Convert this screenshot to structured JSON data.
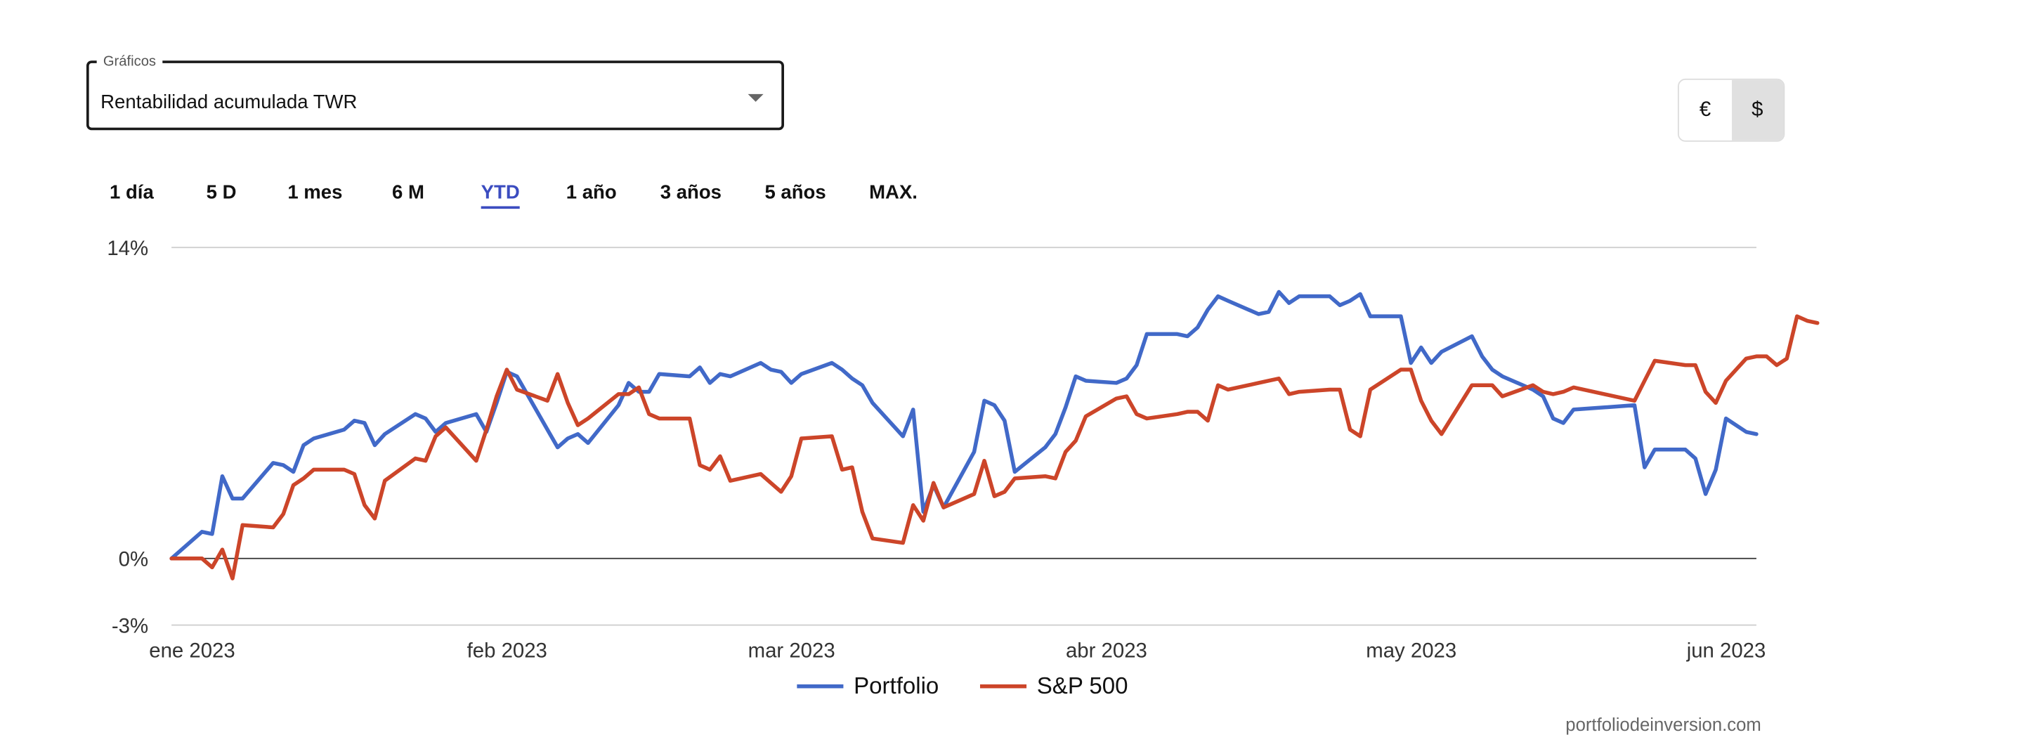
{
  "selector": {
    "legend": "Gráficos",
    "value": "Rentabilidad acumulada TWR"
  },
  "currency": {
    "options": [
      "€",
      "$"
    ],
    "selected": "$"
  },
  "ranges": {
    "tabs": [
      "1 día",
      "5 D",
      "1 mes",
      "6 M",
      "YTD",
      "1 año",
      "3 años",
      "5 años",
      "MAX."
    ],
    "selected": "YTD"
  },
  "watermark": "portfoliodeinversion.com",
  "chart_data": {
    "type": "line",
    "ylim": [
      -3,
      14
    ],
    "yticks": [
      {
        "label": "14%",
        "value": 14,
        "line": "grid"
      },
      {
        "label": "0%",
        "value": 0,
        "line": "zero"
      },
      {
        "label": "-3%",
        "value": -3,
        "line": "grid"
      }
    ],
    "xlim": [
      "2023-01-01",
      "2023-06-06"
    ],
    "xticks": [
      {
        "label": "ene 2023",
        "date": "2023-01-01"
      },
      {
        "label": "feb 2023",
        "date": "2023-02-01"
      },
      {
        "label": "mar 2023",
        "date": "2023-03-01"
      },
      {
        "label": "abr 2023",
        "date": "2023-04-01"
      },
      {
        "label": "may 2023",
        "date": "2023-05-01"
      },
      {
        "label": "jun 2023",
        "date": "2023-06-01"
      }
    ],
    "grid": true,
    "legend": "bottom-center",
    "series": [
      {
        "name": "Portfolio",
        "color": "#4169c8",
        "points": [
          [
            "2023-01-01",
            0.0
          ],
          [
            "2023-01-04",
            1.2
          ],
          [
            "2023-01-05",
            1.1
          ],
          [
            "2023-01-06",
            3.7
          ],
          [
            "2023-01-07",
            2.7
          ],
          [
            "2023-01-08",
            2.7
          ],
          [
            "2023-01-11",
            4.3
          ],
          [
            "2023-01-12",
            4.2
          ],
          [
            "2023-01-13",
            3.9
          ],
          [
            "2023-01-14",
            5.1
          ],
          [
            "2023-01-15",
            5.4
          ],
          [
            "2023-01-18",
            5.8
          ],
          [
            "2023-01-19",
            6.2
          ],
          [
            "2023-01-20",
            6.1
          ],
          [
            "2023-01-21",
            5.1
          ],
          [
            "2023-01-22",
            5.6
          ],
          [
            "2023-01-25",
            6.5
          ],
          [
            "2023-01-26",
            6.3
          ],
          [
            "2023-01-27",
            5.7
          ],
          [
            "2023-01-28",
            6.1
          ],
          [
            "2023-01-31",
            6.5
          ],
          [
            "2023-02-01",
            5.7
          ],
          [
            "2023-02-02",
            7.0
          ],
          [
            "2023-02-03",
            8.4
          ],
          [
            "2023-02-04",
            8.2
          ],
          [
            "2023-02-07",
            5.8
          ],
          [
            "2023-02-08",
            5.0
          ],
          [
            "2023-02-09",
            5.4
          ],
          [
            "2023-02-10",
            5.6
          ],
          [
            "2023-02-11",
            5.2
          ],
          [
            "2023-02-14",
            6.9
          ],
          [
            "2023-02-15",
            7.9
          ],
          [
            "2023-02-16",
            7.5
          ],
          [
            "2023-02-17",
            7.5
          ],
          [
            "2023-02-18",
            8.3
          ],
          [
            "2023-02-21",
            8.2
          ],
          [
            "2023-02-22",
            8.6
          ],
          [
            "2023-02-23",
            7.9
          ],
          [
            "2023-02-24",
            8.3
          ],
          [
            "2023-02-25",
            8.2
          ],
          [
            "2023-02-28",
            8.8
          ],
          [
            "2023-03-01",
            8.5
          ],
          [
            "2023-03-02",
            8.4
          ],
          [
            "2023-03-03",
            7.9
          ],
          [
            "2023-03-04",
            8.3
          ],
          [
            "2023-03-07",
            8.8
          ],
          [
            "2023-03-08",
            8.5
          ],
          [
            "2023-03-09",
            8.1
          ],
          [
            "2023-03-10",
            7.8
          ],
          [
            "2023-03-11",
            7.0
          ],
          [
            "2023-03-14",
            5.5
          ],
          [
            "2023-03-15",
            6.7
          ],
          [
            "2023-03-16",
            2.1
          ],
          [
            "2023-03-17",
            3.3
          ],
          [
            "2023-03-18",
            2.3
          ],
          [
            "2023-03-21",
            4.8
          ],
          [
            "2023-03-22",
            7.1
          ],
          [
            "2023-03-23",
            6.9
          ],
          [
            "2023-03-24",
            6.2
          ],
          [
            "2023-03-25",
            3.9
          ],
          [
            "2023-03-28",
            5.0
          ],
          [
            "2023-03-29",
            5.6
          ],
          [
            "2023-03-30",
            6.8
          ],
          [
            "2023-03-31",
            8.2
          ],
          [
            "2023-04-01",
            8.0
          ],
          [
            "2023-04-04",
            7.9
          ],
          [
            "2023-04-05",
            8.1
          ],
          [
            "2023-04-06",
            8.7
          ],
          [
            "2023-04-07",
            10.1
          ],
          [
            "2023-04-10",
            10.1
          ],
          [
            "2023-04-11",
            10.0
          ],
          [
            "2023-04-12",
            10.4
          ],
          [
            "2023-04-13",
            11.2
          ],
          [
            "2023-04-14",
            11.8
          ],
          [
            "2023-04-15",
            11.6
          ],
          [
            "2023-04-18",
            11.0
          ],
          [
            "2023-04-19",
            11.1
          ],
          [
            "2023-04-20",
            12.0
          ],
          [
            "2023-04-21",
            11.5
          ],
          [
            "2023-04-22",
            11.8
          ],
          [
            "2023-04-25",
            11.8
          ],
          [
            "2023-04-26",
            11.4
          ],
          [
            "2023-04-27",
            11.6
          ],
          [
            "2023-04-28",
            11.9
          ],
          [
            "2023-04-29",
            10.9
          ],
          [
            "2023-05-02",
            10.9
          ],
          [
            "2023-05-03",
            8.8
          ],
          [
            "2023-05-04",
            9.5
          ],
          [
            "2023-05-05",
            8.8
          ],
          [
            "2023-05-06",
            9.3
          ],
          [
            "2023-05-09",
            10.0
          ],
          [
            "2023-05-10",
            9.1
          ],
          [
            "2023-05-11",
            8.5
          ],
          [
            "2023-05-12",
            8.2
          ],
          [
            "2023-05-15",
            7.6
          ],
          [
            "2023-05-16",
            7.3
          ],
          [
            "2023-05-17",
            6.3
          ],
          [
            "2023-05-18",
            6.1
          ],
          [
            "2023-05-19",
            6.7
          ],
          [
            "2023-05-25",
            6.9
          ],
          [
            "2023-05-26",
            4.1
          ],
          [
            "2023-05-27",
            4.9
          ],
          [
            "2023-05-30",
            4.9
          ],
          [
            "2023-05-31",
            4.5
          ],
          [
            "2023-06-01",
            2.9
          ],
          [
            "2023-06-02",
            4.0
          ],
          [
            "2023-06-03",
            6.3
          ],
          [
            "2023-06-05",
            5.7
          ],
          [
            "2023-06-06",
            5.6
          ]
        ]
      },
      {
        "name": "S&P 500",
        "color": "#cc4529",
        "points": [
          [
            "2023-01-01",
            0.0
          ],
          [
            "2023-01-04",
            0.0
          ],
          [
            "2023-01-05",
            -0.4
          ],
          [
            "2023-01-06",
            0.4
          ],
          [
            "2023-01-07",
            -0.9
          ],
          [
            "2023-01-08",
            1.5
          ],
          [
            "2023-01-11",
            1.4
          ],
          [
            "2023-01-12",
            2.0
          ],
          [
            "2023-01-13",
            3.3
          ],
          [
            "2023-01-14",
            3.6
          ],
          [
            "2023-01-15",
            4.0
          ],
          [
            "2023-01-18",
            4.0
          ],
          [
            "2023-01-19",
            3.8
          ],
          [
            "2023-01-20",
            2.4
          ],
          [
            "2023-01-21",
            1.8
          ],
          [
            "2023-01-22",
            3.5
          ],
          [
            "2023-01-25",
            4.5
          ],
          [
            "2023-01-26",
            4.4
          ],
          [
            "2023-01-27",
            5.5
          ],
          [
            "2023-01-28",
            5.9
          ],
          [
            "2023-01-31",
            4.4
          ],
          [
            "2023-02-01",
            5.8
          ],
          [
            "2023-02-02",
            7.3
          ],
          [
            "2023-02-03",
            8.5
          ],
          [
            "2023-02-04",
            7.6
          ],
          [
            "2023-02-07",
            7.1
          ],
          [
            "2023-02-08",
            8.3
          ],
          [
            "2023-02-09",
            7.0
          ],
          [
            "2023-02-10",
            6.0
          ],
          [
            "2023-02-11",
            6.3
          ],
          [
            "2023-02-14",
            7.4
          ],
          [
            "2023-02-15",
            7.4
          ],
          [
            "2023-02-16",
            7.7
          ],
          [
            "2023-02-17",
            6.5
          ],
          [
            "2023-02-18",
            6.3
          ],
          [
            "2023-02-21",
            6.3
          ],
          [
            "2023-02-22",
            4.2
          ],
          [
            "2023-02-23",
            4.0
          ],
          [
            "2023-02-24",
            4.6
          ],
          [
            "2023-02-25",
            3.5
          ],
          [
            "2023-02-28",
            3.8
          ],
          [
            "2023-03-01",
            3.4
          ],
          [
            "2023-03-02",
            3.0
          ],
          [
            "2023-03-03",
            3.7
          ],
          [
            "2023-03-04",
            5.4
          ],
          [
            "2023-03-07",
            5.5
          ],
          [
            "2023-03-08",
            4.0
          ],
          [
            "2023-03-09",
            4.1
          ],
          [
            "2023-03-10",
            2.1
          ],
          [
            "2023-03-11",
            0.9
          ],
          [
            "2023-03-14",
            0.7
          ],
          [
            "2023-03-15",
            2.4
          ],
          [
            "2023-03-16",
            1.7
          ],
          [
            "2023-03-17",
            3.4
          ],
          [
            "2023-03-18",
            2.3
          ],
          [
            "2023-03-21",
            2.9
          ],
          [
            "2023-03-22",
            4.4
          ],
          [
            "2023-03-23",
            2.8
          ],
          [
            "2023-03-24",
            3.0
          ],
          [
            "2023-03-25",
            3.6
          ],
          [
            "2023-03-28",
            3.7
          ],
          [
            "2023-03-29",
            3.6
          ],
          [
            "2023-03-30",
            4.8
          ],
          [
            "2023-03-31",
            5.3
          ],
          [
            "2023-04-01",
            6.4
          ],
          [
            "2023-04-04",
            7.2
          ],
          [
            "2023-04-05",
            7.3
          ],
          [
            "2023-04-06",
            6.5
          ],
          [
            "2023-04-07",
            6.3
          ],
          [
            "2023-04-10",
            6.5
          ],
          [
            "2023-04-11",
            6.6
          ],
          [
            "2023-04-12",
            6.6
          ],
          [
            "2023-04-13",
            6.2
          ],
          [
            "2023-04-14",
            7.8
          ],
          [
            "2023-04-15",
            7.6
          ],
          [
            "2023-04-18",
            7.9
          ],
          [
            "2023-04-19",
            8.0
          ],
          [
            "2023-04-20",
            8.1
          ],
          [
            "2023-04-21",
            7.4
          ],
          [
            "2023-04-22",
            7.5
          ],
          [
            "2023-04-25",
            7.6
          ],
          [
            "2023-04-26",
            7.6
          ],
          [
            "2023-04-27",
            5.8
          ],
          [
            "2023-04-28",
            5.5
          ],
          [
            "2023-04-29",
            7.6
          ],
          [
            "2023-05-02",
            8.5
          ],
          [
            "2023-05-03",
            8.5
          ],
          [
            "2023-05-04",
            7.1
          ],
          [
            "2023-05-05",
            6.2
          ],
          [
            "2023-05-06",
            5.6
          ],
          [
            "2023-05-09",
            7.8
          ],
          [
            "2023-05-10",
            7.8
          ],
          [
            "2023-05-11",
            7.8
          ],
          [
            "2023-05-12",
            7.3
          ],
          [
            "2023-05-15",
            7.8
          ],
          [
            "2023-05-16",
            7.5
          ],
          [
            "2023-05-17",
            7.4
          ],
          [
            "2023-05-18",
            7.5
          ],
          [
            "2023-05-19",
            7.7
          ],
          [
            "2023-05-25",
            7.1
          ],
          [
            "2023-05-26",
            8.0
          ],
          [
            "2023-05-27",
            8.9
          ],
          [
            "2023-05-30",
            8.7
          ],
          [
            "2023-05-31",
            8.7
          ],
          [
            "2023-06-01",
            7.5
          ],
          [
            "2023-06-02",
            7.0
          ],
          [
            "2023-06-03",
            8.0
          ],
          [
            "2023-06-05",
            9.0
          ],
          [
            "2023-06-06",
            9.1
          ],
          [
            "2023-06-07",
            9.1
          ],
          [
            "2023-06-08",
            8.7
          ],
          [
            "2023-06-09",
            9.0
          ],
          [
            "2023-06-10",
            10.9
          ],
          [
            "2023-06-11",
            10.7
          ],
          [
            "2023-06-12",
            10.6
          ]
        ]
      }
    ]
  }
}
